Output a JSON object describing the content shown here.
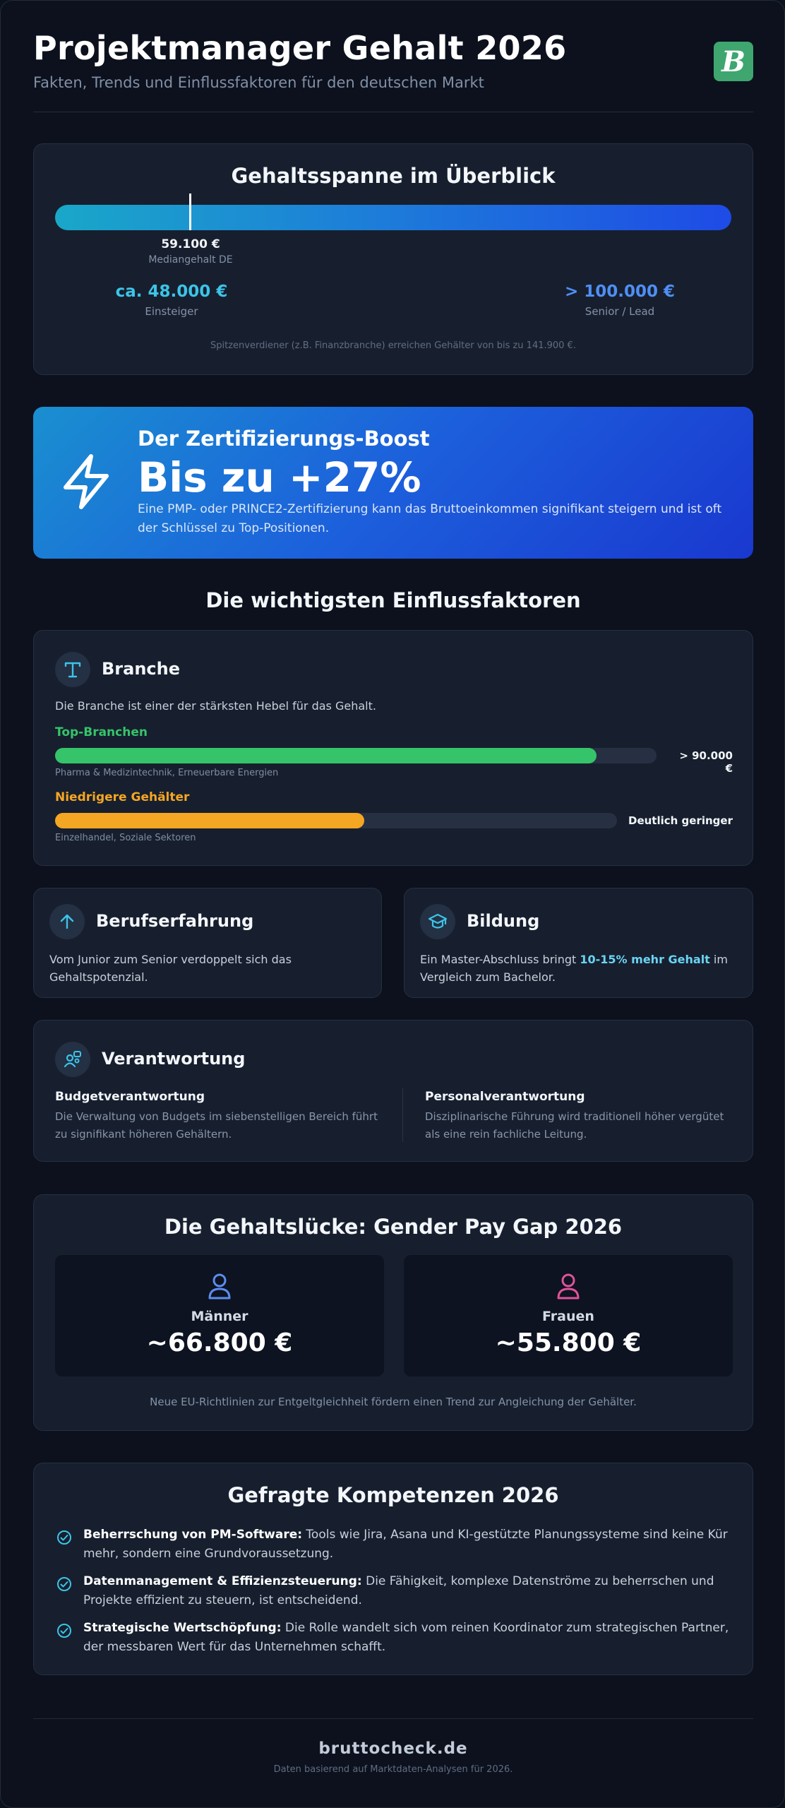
{
  "header": {
    "title": "Projektmanager Gehalt 2026",
    "subtitle": "Fakten, Trends und Einflussfaktoren für den deutschen Markt",
    "logo_letter": "B",
    "logo_icon": "brand-logo-icon"
  },
  "range": {
    "title": "Gehaltsspanne im Überblick",
    "median_value": "59.100 €",
    "median_label": "Mediangehalt DE",
    "low_value": "ca. 48.000 €",
    "low_label": "Einsteiger",
    "high_value": "> 100.000 €",
    "high_label": "Senior / Lead",
    "note": "Spitzenverdiener (z.B. Finanzbranche) erreichen Gehälter von bis zu 141.900 €.",
    "colors": {
      "low": "#3cc4e8",
      "high": "#4f8ff5"
    }
  },
  "boost": {
    "title": "Der Zertifizierungs-Boost",
    "value": "Bis zu +27%",
    "text": "Eine PMP- oder PRINCE2-Zertifizierung kann das Bruttoeinkommen signifikant steigern und ist oft der Schlüssel zu Top-Positionen.",
    "icon": "lightning-icon"
  },
  "factors": {
    "title": "Die wichtigsten Einflussfaktoren",
    "branche": {
      "title": "Branche",
      "icon": "industry-icon",
      "text": "Die Branche ist einer der stärksten Hebel für das Gehalt.",
      "top": {
        "label": "Top-Branchen",
        "value": "> 90.000 €",
        "sub": "Pharma & Medizintechnik, Erneuerbare Energien",
        "fill": 0.9,
        "color": "#35c46a"
      },
      "low": {
        "label": "Niedrigere Gehälter",
        "value": "Deutlich geringer",
        "sub": "Einzelhandel, Soziale Sektoren",
        "fill": 0.55,
        "color": "#f5a623"
      }
    },
    "erfahrung": {
      "title": "Berufserfahrung",
      "icon": "arrow-up-icon",
      "text": "Vom Junior zum Senior verdoppelt sich das Gehaltspotenzial."
    },
    "bildung": {
      "title": "Bildung",
      "icon": "graduation-cap-icon",
      "text_before": "Ein Master-Abschluss bringt ",
      "highlight": "10-15% mehr Gehalt",
      "text_after": " im Vergleich zum Bachelor."
    },
    "verantwortung": {
      "title": "Verantwortung",
      "icon": "people-icon",
      "budget_head": "Budgetverantwortung",
      "budget_text": "Die Verwaltung von Budgets im siebenstelligen Bereich führt zu signifikant höheren Gehältern.",
      "personal_head": "Personalverantwortung",
      "personal_text": "Disziplinarische Führung wird traditionell höher vergütet als eine rein fachliche Leitung."
    }
  },
  "gender_gap": {
    "title": "Die Gehaltslücke: Gender Pay Gap 2026",
    "men_label": "Männer",
    "men_value": "~66.800 €",
    "men_icon": "user-icon",
    "men_color": "#5b8def",
    "women_label": "Frauen",
    "women_value": "~55.800 €",
    "women_icon": "user-icon",
    "women_color": "#e0529c",
    "note": "Neue EU-Richtlinien zur Entgeltgleichheit fördern einen Trend zur Angleichung der Gehälter."
  },
  "competencies": {
    "title": "Gefragte Kompetenzen 2026",
    "icon": "check-circle-icon",
    "items": [
      {
        "head": "Beherrschung von PM-Software:",
        "text": " Tools wie Jira, Asana und KI-gestützte Planungssysteme sind keine Kür mehr, sondern eine Grundvoraussetzung."
      },
      {
        "head": "Datenmanagement & Effizienzsteuerung:",
        "text": " Die Fähigkeit, komplexe Datenströme zu beherrschen und Projekte effizient zu steuern, ist entscheidend."
      },
      {
        "head": "Strategische Wertschöpfung:",
        "text": " Die Rolle wandelt sich vom reinen Koordinator zum strategischen Partner, der messbaren Wert für das Unternehmen schafft."
      }
    ]
  },
  "footer": {
    "site": "bruttocheck.de",
    "note": "Daten basierend auf Marktdaten-Analysen für 2026."
  }
}
